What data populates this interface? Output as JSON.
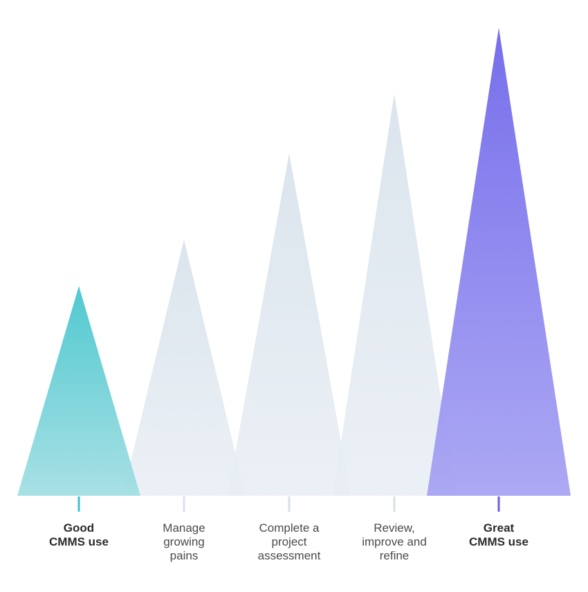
{
  "stages": [
    {
      "label_lines": [
        "Good",
        "CMMS use"
      ],
      "emphasis": true,
      "color_top": "#48c6cd",
      "color_bottom": "#a3dfe4",
      "tick_color": "#3fbfcb",
      "height_rank": 1
    },
    {
      "label_lines": [
        "Manage",
        "growing",
        "pains"
      ],
      "emphasis": false,
      "color_top": "#d5e0ea",
      "color_bottom": "#e8eef4",
      "tick_color": "#d6dfe9",
      "height_rank": 2
    },
    {
      "label_lines": [
        "Complete a",
        "project",
        "assessment"
      ],
      "emphasis": false,
      "color_top": "#d5e0ea",
      "color_bottom": "#e8eef4",
      "tick_color": "#d6dfe9",
      "height_rank": 3
    },
    {
      "label_lines": [
        "Review,",
        "improve and",
        "refine"
      ],
      "emphasis": false,
      "color_top": "#d5e0ea",
      "color_bottom": "#e8eef4",
      "tick_color": "#d6dfe9",
      "height_rank": 4
    },
    {
      "label_lines": [
        "Great",
        "CMMS use"
      ],
      "emphasis": true,
      "color_top": "#7067ea",
      "color_bottom": "#a8a4f3",
      "tick_color": "#6a5fe3",
      "height_rank": 5
    }
  ],
  "colors": {
    "baseline": "#e4e9ef",
    "label_text": "#4a4a4a",
    "label_text_bold": "#2b2b2b"
  }
}
